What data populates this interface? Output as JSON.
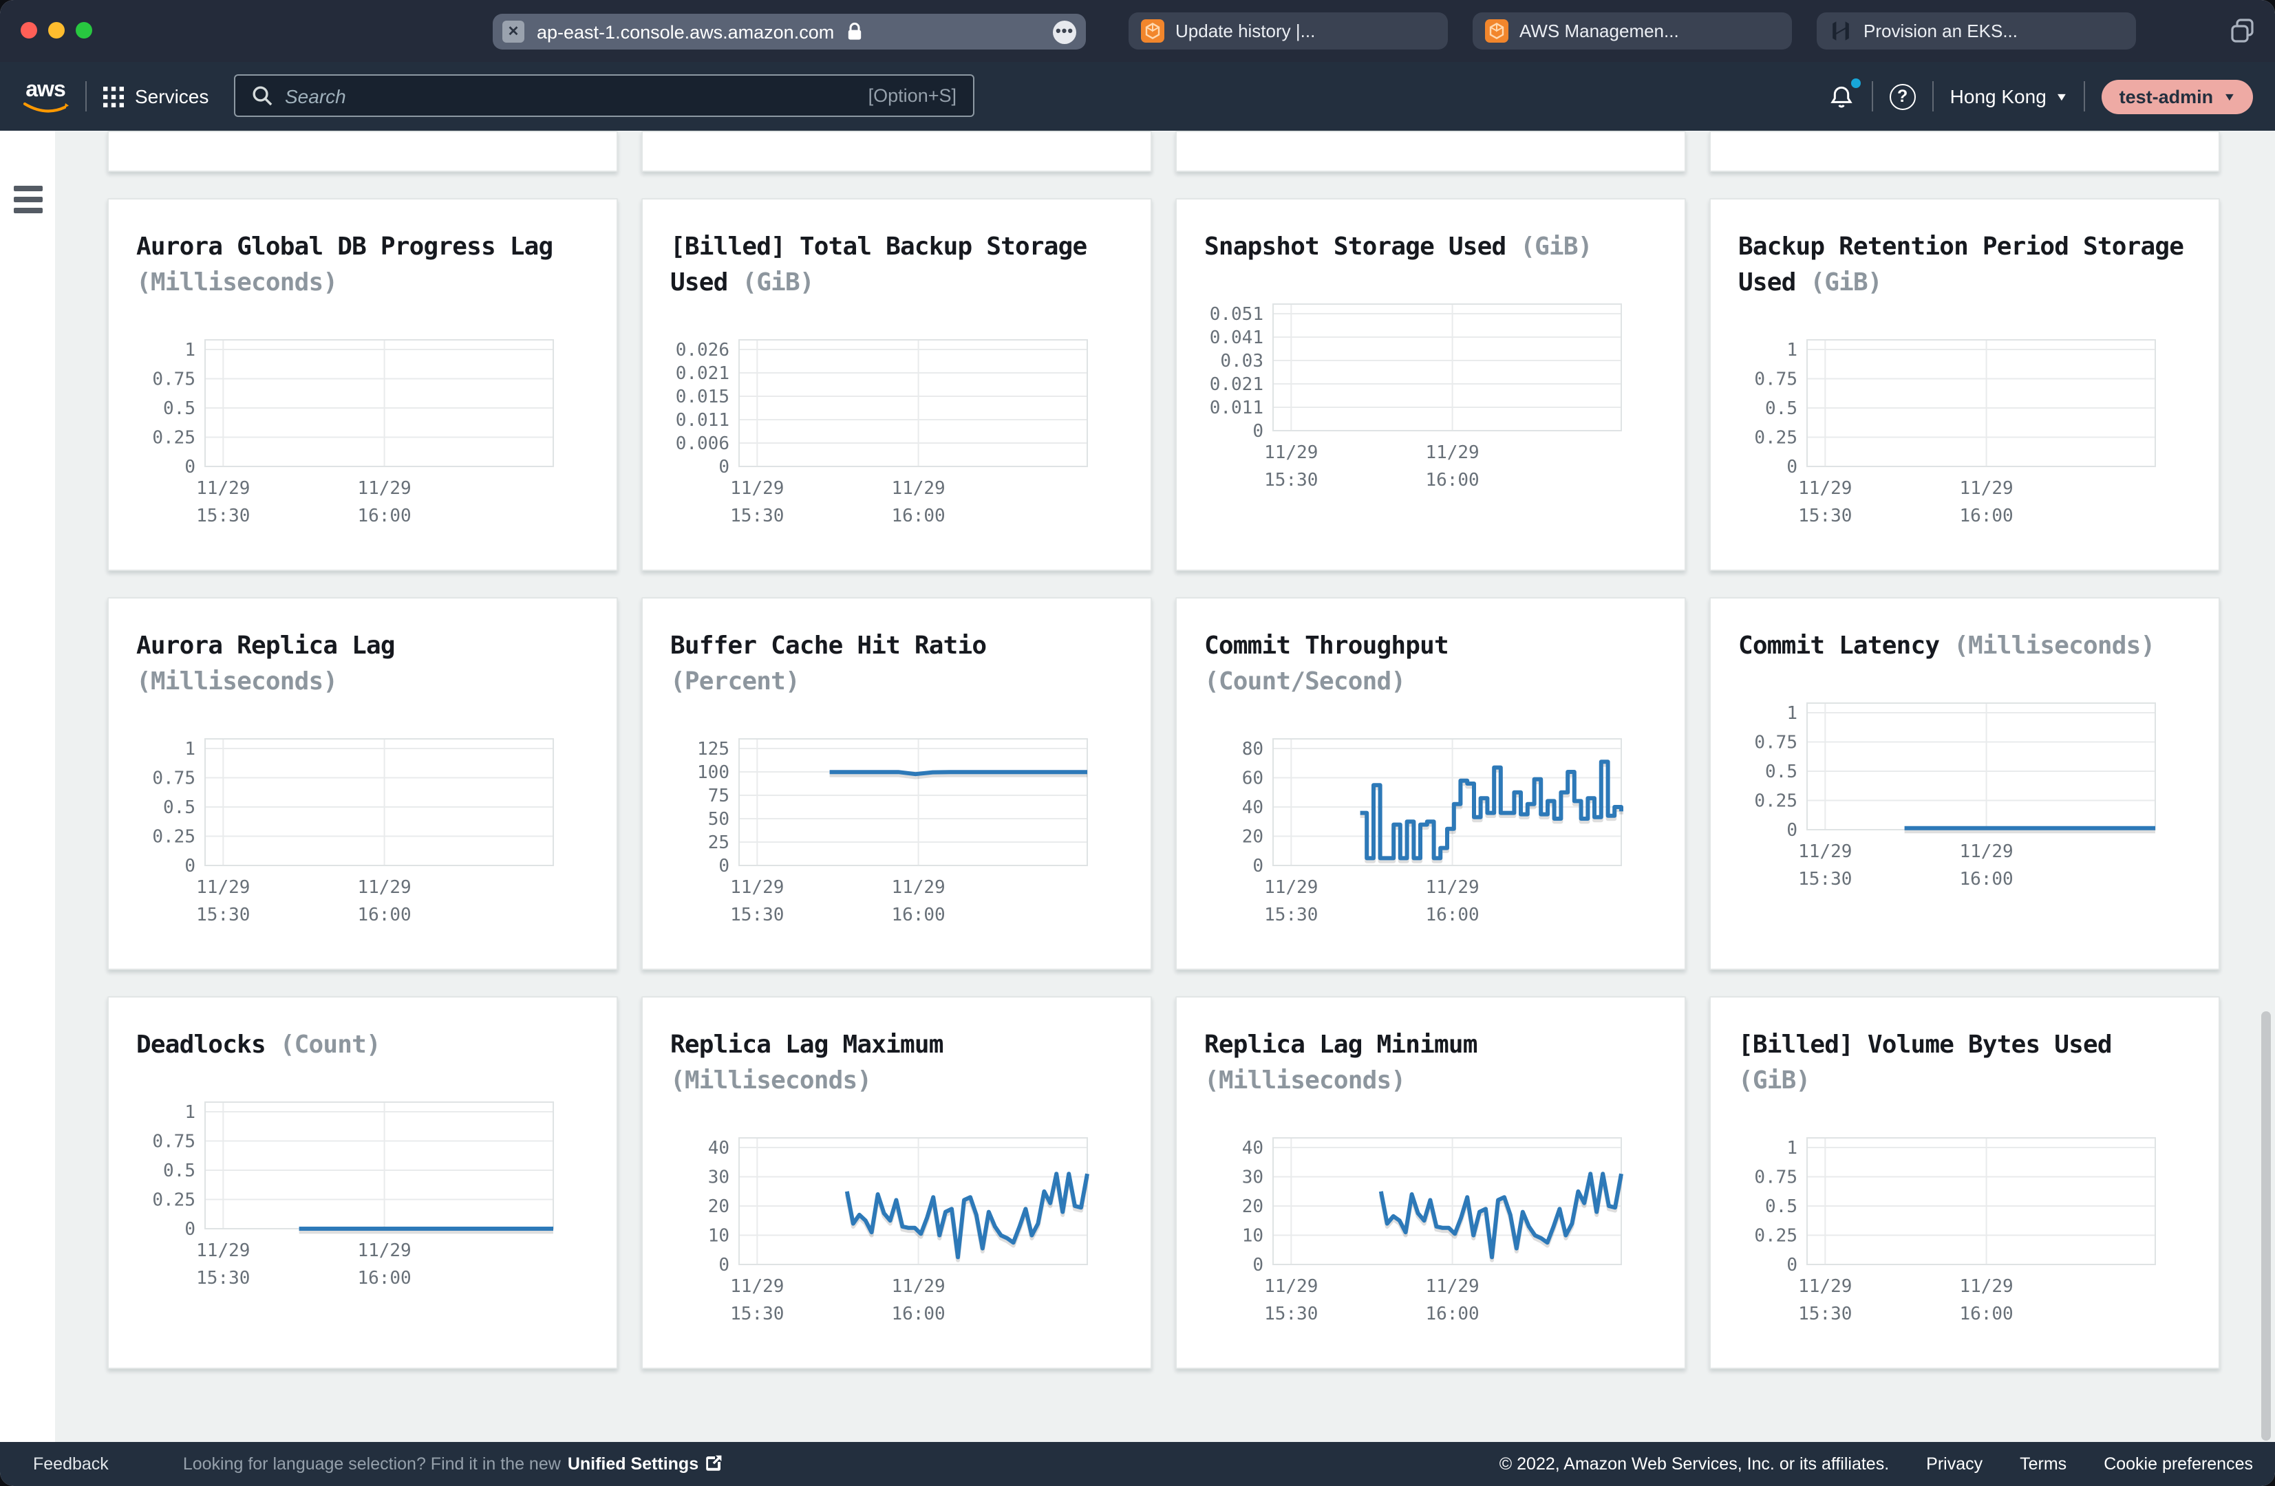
{
  "browser": {
    "url": "ap-east-1.console.aws.amazon.com",
    "tabs": [
      {
        "label": "Update history |..."
      },
      {
        "label": "AWS Managemen..."
      },
      {
        "label": "Provision an EKS..."
      }
    ]
  },
  "nav": {
    "services_label": "Services",
    "search_placeholder": "Search",
    "search_shortcut": "[Option+S]",
    "region": "Hong Kong",
    "account": "test-admin"
  },
  "icons": {
    "close_x": "✕",
    "more_dots": "•••",
    "help_q": "?",
    "caret_down": "▼"
  },
  "colors": {
    "aws_navy": "#232f3e",
    "aws_orange": "#f2862c",
    "chart_line_blue": "#2d79b8",
    "account_pill": "#eeaaa4",
    "traffic_close": "#ff5f57",
    "traffic_min": "#febc2e",
    "traffic_zoom": "#28c840",
    "notification_dot": "#18a7d9"
  },
  "chart_style": {
    "line_color": "#2d79b8",
    "grid_color": "#e9ebec",
    "border_color": "#dfe3e4",
    "tick_color": "#687078",
    "title_color": "#16191f",
    "unit_color": "#8d969e"
  },
  "x_axis": {
    "labels": [
      [
        "11/29",
        "15:30"
      ],
      [
        "11/29",
        "16:00"
      ]
    ]
  },
  "charts": [
    {
      "title": "Aurora Global DB Progress Lag",
      "unit": "(Milliseconds)",
      "type": "line",
      "y_ticks": [
        "1",
        "0.75",
        "0.5",
        "0.25",
        "0"
      ],
      "y_top": 1,
      "series": null
    },
    {
      "title": "[Billed] Total Backup Storage Used",
      "unit": "(GiB)",
      "type": "line",
      "y_ticks": [
        "0.026",
        "0.021",
        "0.015",
        "0.011",
        "0.006",
        "0"
      ],
      "y_top": 0.026,
      "series": null
    },
    {
      "title": "Snapshot Storage Used",
      "unit": "(GiB)",
      "type": "line",
      "y_ticks": [
        "0.051",
        "0.041",
        "0.03",
        "0.021",
        "0.011",
        "0"
      ],
      "y_top": 0.051,
      "series": null
    },
    {
      "title": "Backup Retention Period Storage Used",
      "unit": "(GiB)",
      "type": "line",
      "y_ticks": [
        "1",
        "0.75",
        "0.5",
        "0.25",
        "0"
      ],
      "y_top": 1,
      "series": null
    },
    {
      "title": "Aurora Replica Lag",
      "unit": "(Milliseconds)",
      "type": "line",
      "y_ticks": [
        "1",
        "0.75",
        "0.5",
        "0.25",
        "0"
      ],
      "y_top": 1,
      "series": null
    },
    {
      "title": "Buffer Cache Hit Ratio",
      "unit": "(Percent)",
      "type": "line",
      "y_ticks": [
        "125",
        "100",
        "75",
        "50",
        "25",
        "0"
      ],
      "y_top": 125,
      "series": {
        "style": "linear",
        "start_frac": 0.26,
        "values": [
          99.8,
          99.9,
          99.8,
          99.9,
          99.8,
          97.6,
          99.5,
          99.8,
          99.9,
          99.8,
          99.9,
          99.8,
          99.9,
          99.8,
          99.9,
          99.8
        ]
      }
    },
    {
      "title": "Commit Throughput",
      "unit": "(Count/Second)",
      "type": "line",
      "y_ticks": [
        "80",
        "60",
        "40",
        "20",
        "0"
      ],
      "y_top": 80,
      "series": {
        "style": "step",
        "start_frac": 0.25,
        "values": [
          36,
          5,
          55,
          5,
          5,
          28,
          5,
          30,
          5,
          28,
          30,
          5,
          12,
          25,
          42,
          58,
          56,
          33,
          46,
          36,
          67,
          36,
          36,
          50,
          35,
          42,
          59,
          35,
          44,
          32,
          50,
          64,
          44,
          32,
          46,
          33,
          71,
          34,
          40,
          37
        ]
      }
    },
    {
      "title": "Commit Latency",
      "unit": "(Milliseconds)",
      "type": "line",
      "y_ticks": [
        "1",
        "0.75",
        "0.5",
        "0.25",
        "0"
      ],
      "y_top": 1,
      "series": {
        "style": "linear",
        "start_frac": 0.28,
        "values": [
          0.013,
          0.013,
          0.013,
          0.013,
          0.013,
          0.013,
          0.013,
          0.013,
          0.013,
          0.013
        ]
      }
    },
    {
      "title": "Deadlocks",
      "unit": "(Count)",
      "type": "line",
      "y_ticks": [
        "1",
        "0.75",
        "0.5",
        "0.25",
        "0"
      ],
      "y_top": 1,
      "series": {
        "style": "linear",
        "start_frac": 0.27,
        "values": [
          0,
          0,
          0,
          0,
          0,
          0,
          0,
          0,
          0,
          0
        ]
      }
    },
    {
      "title": "Replica Lag Maximum",
      "unit": "(Milliseconds)",
      "type": "line",
      "y_ticks": [
        "40",
        "30",
        "20",
        "10",
        "0"
      ],
      "y_top": 40,
      "series": {
        "style": "linear",
        "start_frac": 0.31,
        "values": [
          25,
          14,
          17,
          15,
          11,
          24,
          17.5,
          15,
          22,
          13,
          12.5,
          12.5,
          10.5,
          16,
          23,
          10,
          18,
          19,
          2.5,
          22,
          23,
          17,
          5.5,
          18,
          13,
          10,
          9,
          7.5,
          13,
          19,
          10,
          14,
          25,
          21,
          31,
          18,
          31,
          20,
          19.5,
          31
        ]
      }
    },
    {
      "title": "Replica Lag Minimum",
      "unit": "(Milliseconds)",
      "type": "line",
      "y_ticks": [
        "40",
        "30",
        "20",
        "10",
        "0"
      ],
      "y_top": 40,
      "series": {
        "style": "linear",
        "start_frac": 0.31,
        "values": [
          25,
          14,
          16.5,
          15,
          11,
          24,
          17.5,
          15,
          22,
          13,
          12.5,
          12.5,
          10.5,
          16,
          23,
          10,
          18,
          19,
          2.5,
          22,
          23,
          17,
          5.5,
          18,
          13,
          10,
          9,
          7.5,
          13,
          19,
          10,
          14,
          25,
          21,
          31,
          18,
          31,
          20,
          19.5,
          31
        ]
      }
    },
    {
      "title": "[Billed] Volume Bytes Used",
      "unit": "(GiB)",
      "type": "line",
      "y_ticks": [
        "1",
        "0.75",
        "0.5",
        "0.25",
        "0"
      ],
      "y_top": 1,
      "series": null
    }
  ],
  "footer": {
    "feedback": "Feedback",
    "language_prompt": "Looking for language selection? Find it in the new",
    "language_link": "Unified Settings",
    "copyright": "© 2022, Amazon Web Services, Inc. or its affiliates.",
    "links": [
      "Privacy",
      "Terms",
      "Cookie preferences"
    ]
  }
}
